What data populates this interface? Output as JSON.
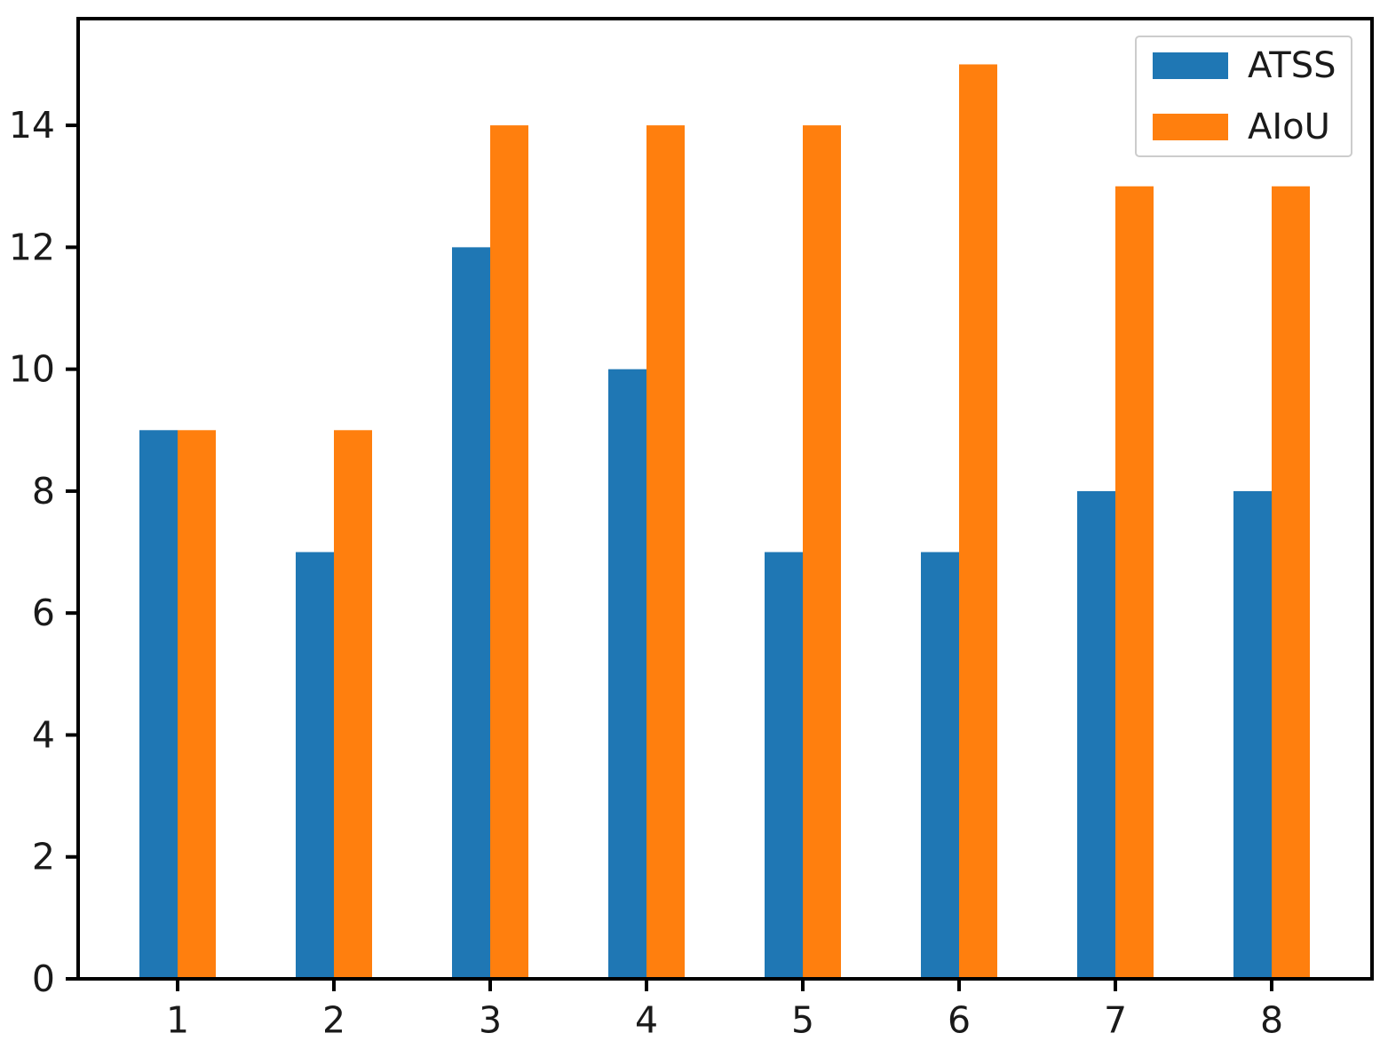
{
  "chart_data": {
    "type": "bar",
    "categories": [
      "1",
      "2",
      "3",
      "4",
      "5",
      "6",
      "7",
      "8"
    ],
    "series": [
      {
        "name": "ATSS",
        "color": "#1f77b4",
        "values": [
          9,
          7,
          12,
          10,
          7,
          7,
          8,
          8
        ]
      },
      {
        "name": "AIoU",
        "color": "#ff7f0e",
        "values": [
          9,
          9,
          14,
          14,
          14,
          15,
          13,
          13
        ]
      }
    ],
    "title": "",
    "xlabel": "",
    "ylabel": "",
    "ylim": [
      0,
      15.75
    ],
    "yticks": [
      0,
      2,
      4,
      6,
      8,
      10,
      12,
      14
    ],
    "grid": false,
    "legend_position": "upper right",
    "axis_color": "#000000",
    "tick_label_color": "#1a1a1a"
  }
}
